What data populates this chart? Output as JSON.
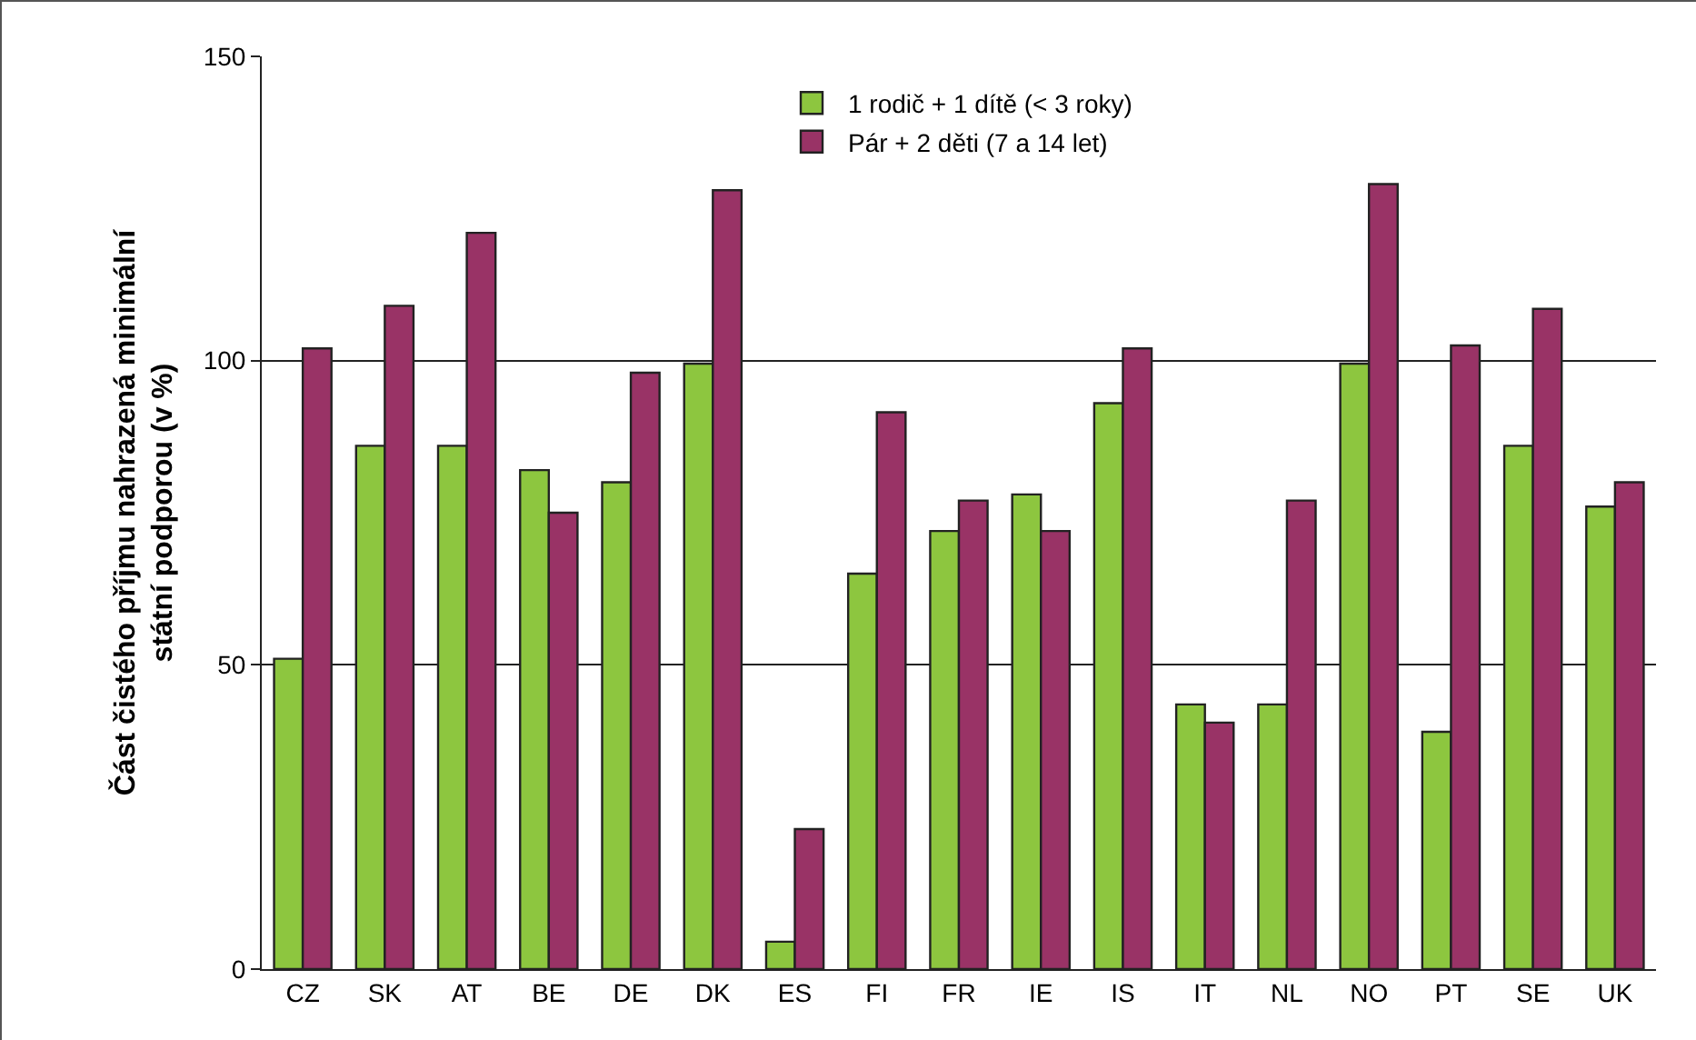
{
  "chart_data": {
    "type": "bar",
    "ylabel": "Část čistého příjmu nahrazená minimální státní podporou (v %)",
    "categories": [
      "CZ",
      "SK",
      "AT",
      "BE",
      "DE",
      "DK",
      "ES",
      "FI",
      "FR",
      "IE",
      "IS",
      "IT",
      "NL",
      "NO",
      "PT",
      "SE",
      "UK"
    ],
    "series": [
      {
        "name": "1 rodič + 1 dítě (< 3 roky)",
        "color": "#8dc63f",
        "values": [
          51,
          86,
          86,
          82,
          80,
          99.5,
          4.5,
          65,
          72,
          78,
          93,
          43.5,
          43.5,
          99.5,
          39,
          86,
          76
        ]
      },
      {
        "name": "Pár + 2 děti (7 a 14 let)",
        "color": "#993366",
        "values": [
          102,
          109,
          121,
          75,
          98,
          128,
          23,
          91.5,
          77,
          72,
          102,
          40.5,
          77,
          129,
          102.5,
          108.5,
          80
        ]
      }
    ],
    "ylim": [
      0,
      150
    ],
    "yticks": [
      0,
      50,
      100,
      150
    ],
    "grid": "y",
    "legend": "top"
  }
}
